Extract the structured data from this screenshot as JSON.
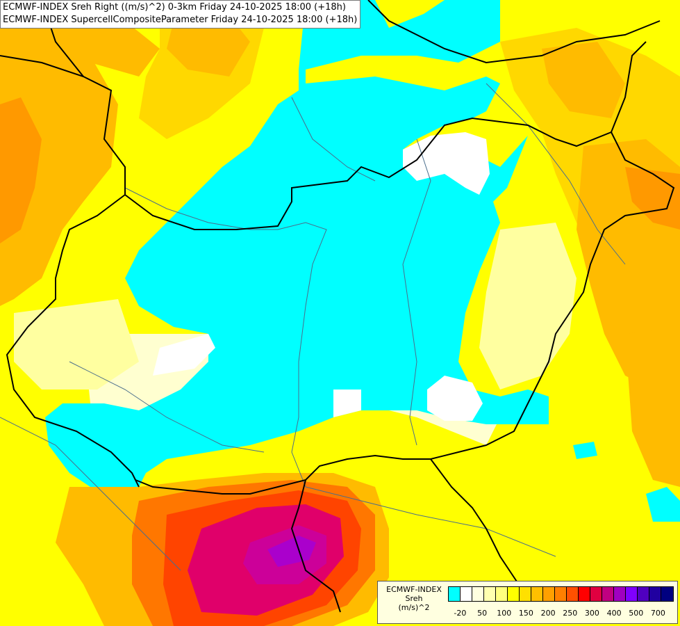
{
  "header": {
    "line1": "ECMWF-INDEX Sreh Right ((m/s)^2) 0-3km Friday 24-10-2025 18:00 (+18h)",
    "line2": "ECMWF-INDEX SupercellCompositeParameter Friday 24-10-2025 18:00 (+18h)"
  },
  "legend": {
    "source": "ECMWF-INDEX",
    "parameter": "Sreh",
    "unit": "(m/s)^2",
    "colors": [
      "#00ffff",
      "#ffffff",
      "#ffffe0",
      "#ffffb0",
      "#ffff80",
      "#ffff00",
      "#ffe000",
      "#ffc000",
      "#ffa000",
      "#ff8000",
      "#ff5000",
      "#ff0000",
      "#e00040",
      "#c00080",
      "#a000c0",
      "#8000ff",
      "#5000c0",
      "#2000a0",
      "#000080"
    ],
    "tick_labels": [
      "-20",
      "50",
      "100",
      "150",
      "200",
      "250",
      "300",
      "400",
      "500",
      "700"
    ]
  },
  "map": {
    "field_colors": {
      "cyan": "#00ffff",
      "white": "#ffffff",
      "light_cream": "#ffffd0",
      "pale_yellow": "#ffffa0",
      "yellow": "#ffff00",
      "gold": "#ffd800",
      "orange_light": "#ffbb00",
      "orange": "#ff9900",
      "orange_dark": "#ff7700",
      "red_orange": "#ff4400",
      "crimson": "#e0006a",
      "magenta": "#cc0099",
      "violet": "#aa00cc"
    },
    "border_color": "#000000",
    "river_color": "#4a6e8c"
  }
}
